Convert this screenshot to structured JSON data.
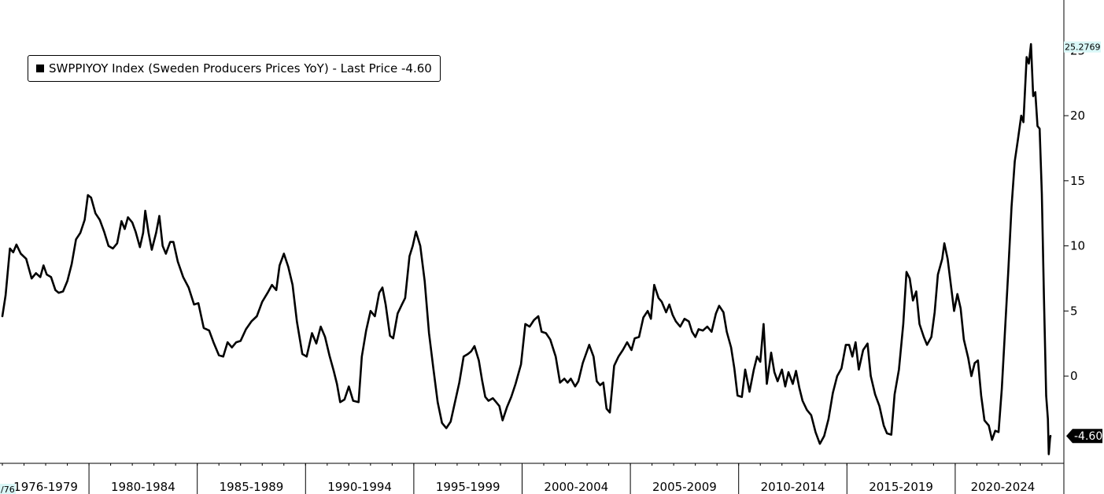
{
  "legend": {
    "text": "SWPPIYOY Index (Sweden Producers Prices YoY) - Last Price -4.60"
  },
  "axis_tags": {
    "max_value": "25.2769",
    "last_value": "-4.60",
    "start_tag": "/76"
  },
  "colors": {
    "line": "#000000",
    "axis": "#000000",
    "tag_bg": "#d9f7f7",
    "last_tag_bg": "#000000"
  },
  "chart_data": {
    "type": "line",
    "x_range": [
      1976.0,
      2024.4
    ],
    "ylim": [
      -6.7,
      28.4
    ],
    "y_ticks": [
      0,
      5,
      10,
      15,
      20,
      25
    ],
    "y_tick_labels": [
      "0",
      "5",
      "10",
      "15",
      "20",
      "25"
    ],
    "x_period_labels": [
      "1976-1979",
      "1980-1984",
      "1985-1989",
      "1990-1994",
      "1995-1999",
      "2000-2004",
      "2005-2009",
      "2010-2014",
      "2015-2019",
      "2020-2024"
    ],
    "x_period_bounds": [
      [
        1976.0,
        1980.0
      ],
      [
        1980.0,
        1985.0
      ],
      [
        1985.0,
        1990.0
      ],
      [
        1990.0,
        1995.0
      ],
      [
        1995.0,
        2000.0
      ],
      [
        2000.0,
        2005.0
      ],
      [
        2005.0,
        2010.0
      ],
      [
        2010.0,
        2015.0
      ],
      [
        2015.0,
        2020.0
      ],
      [
        2020.0,
        2024.4
      ]
    ],
    "grid": false,
    "legend_position": "top-left",
    "series": [
      {
        "values": [
          [
            1976.0,
            4.6
          ],
          [
            1976.15,
            6.2
          ],
          [
            1976.35,
            9.8
          ],
          [
            1976.5,
            9.5
          ],
          [
            1976.65,
            10.1
          ],
          [
            1976.85,
            9.4
          ],
          [
            1977.1,
            9.0
          ],
          [
            1977.35,
            7.5
          ],
          [
            1977.55,
            7.9
          ],
          [
            1977.75,
            7.6
          ],
          [
            1977.9,
            8.5
          ],
          [
            1978.05,
            7.8
          ],
          [
            1978.25,
            7.6
          ],
          [
            1978.45,
            6.6
          ],
          [
            1978.6,
            6.4
          ],
          [
            1978.8,
            6.5
          ],
          [
            1979.0,
            7.3
          ],
          [
            1979.2,
            8.6
          ],
          [
            1979.4,
            10.5
          ],
          [
            1979.6,
            11.0
          ],
          [
            1979.8,
            12.0
          ],
          [
            1979.95,
            13.9
          ],
          [
            1980.1,
            13.7
          ],
          [
            1980.3,
            12.5
          ],
          [
            1980.5,
            12.0
          ],
          [
            1980.7,
            11.1
          ],
          [
            1980.9,
            10.0
          ],
          [
            1981.1,
            9.8
          ],
          [
            1981.3,
            10.2
          ],
          [
            1981.5,
            11.9
          ],
          [
            1981.65,
            11.3
          ],
          [
            1981.8,
            12.2
          ],
          [
            1982.0,
            11.8
          ],
          [
            1982.15,
            11.1
          ],
          [
            1982.35,
            9.9
          ],
          [
            1982.5,
            11.0
          ],
          [
            1982.6,
            12.7
          ],
          [
            1982.75,
            11.0
          ],
          [
            1982.9,
            9.7
          ],
          [
            1983.1,
            11.0
          ],
          [
            1983.25,
            12.3
          ],
          [
            1983.4,
            10.0
          ],
          [
            1983.55,
            9.4
          ],
          [
            1983.75,
            10.3
          ],
          [
            1983.9,
            10.3
          ],
          [
            1984.1,
            8.8
          ],
          [
            1984.35,
            7.6
          ],
          [
            1984.6,
            6.8
          ],
          [
            1984.85,
            5.5
          ],
          [
            1985.05,
            5.6
          ],
          [
            1985.3,
            3.7
          ],
          [
            1985.55,
            3.5
          ],
          [
            1985.75,
            2.6
          ],
          [
            1986.0,
            1.6
          ],
          [
            1986.2,
            1.5
          ],
          [
            1986.4,
            2.6
          ],
          [
            1986.6,
            2.2
          ],
          [
            1986.8,
            2.6
          ],
          [
            1987.0,
            2.7
          ],
          [
            1987.25,
            3.6
          ],
          [
            1987.5,
            4.2
          ],
          [
            1987.75,
            4.6
          ],
          [
            1988.0,
            5.7
          ],
          [
            1988.25,
            6.4
          ],
          [
            1988.45,
            7.0
          ],
          [
            1988.65,
            6.6
          ],
          [
            1988.8,
            8.5
          ],
          [
            1989.0,
            9.4
          ],
          [
            1989.2,
            8.4
          ],
          [
            1989.4,
            7.0
          ],
          [
            1989.6,
            4.2
          ],
          [
            1989.85,
            1.7
          ],
          [
            1990.05,
            1.5
          ],
          [
            1990.3,
            3.3
          ],
          [
            1990.5,
            2.5
          ],
          [
            1990.7,
            3.8
          ],
          [
            1990.9,
            3.0
          ],
          [
            1991.1,
            1.6
          ],
          [
            1991.3,
            0.4
          ],
          [
            1991.45,
            -0.6
          ],
          [
            1991.6,
            -2.0
          ],
          [
            1991.8,
            -1.8
          ],
          [
            1992.0,
            -0.8
          ],
          [
            1992.2,
            -1.9
          ],
          [
            1992.45,
            -2.0
          ],
          [
            1992.6,
            1.5
          ],
          [
            1992.8,
            3.5
          ],
          [
            1993.0,
            5.0
          ],
          [
            1993.2,
            4.6
          ],
          [
            1993.4,
            6.4
          ],
          [
            1993.55,
            6.8
          ],
          [
            1993.7,
            5.5
          ],
          [
            1993.9,
            3.1
          ],
          [
            1994.05,
            2.9
          ],
          [
            1994.25,
            4.8
          ],
          [
            1994.45,
            5.5
          ],
          [
            1994.6,
            6.0
          ],
          [
            1994.8,
            9.2
          ],
          [
            1994.95,
            10.0
          ],
          [
            1995.1,
            11.1
          ],
          [
            1995.3,
            10.0
          ],
          [
            1995.5,
            7.3
          ],
          [
            1995.7,
            3.3
          ],
          [
            1995.9,
            0.6
          ],
          [
            1996.1,
            -2.0
          ],
          [
            1996.3,
            -3.6
          ],
          [
            1996.5,
            -4.0
          ],
          [
            1996.7,
            -3.5
          ],
          [
            1996.9,
            -2.0
          ],
          [
            1997.1,
            -0.5
          ],
          [
            1997.3,
            1.5
          ],
          [
            1997.5,
            1.7
          ],
          [
            1997.65,
            1.9
          ],
          [
            1997.8,
            2.3
          ],
          [
            1998.0,
            1.2
          ],
          [
            1998.15,
            -0.3
          ],
          [
            1998.3,
            -1.6
          ],
          [
            1998.45,
            -1.9
          ],
          [
            1998.65,
            -1.7
          ],
          [
            1998.8,
            -2.0
          ],
          [
            1998.95,
            -2.3
          ],
          [
            1999.1,
            -3.4
          ],
          [
            1999.3,
            -2.4
          ],
          [
            1999.5,
            -1.6
          ],
          [
            1999.7,
            -0.6
          ],
          [
            1999.95,
            0.9
          ],
          [
            2000.15,
            4.0
          ],
          [
            2000.35,
            3.8
          ],
          [
            2000.55,
            4.3
          ],
          [
            2000.75,
            4.6
          ],
          [
            2000.9,
            3.4
          ],
          [
            2001.1,
            3.3
          ],
          [
            2001.3,
            2.8
          ],
          [
            2001.55,
            1.5
          ],
          [
            2001.75,
            -0.5
          ],
          [
            2001.95,
            -0.2
          ],
          [
            2002.1,
            -0.5
          ],
          [
            2002.25,
            -0.2
          ],
          [
            2002.45,
            -0.8
          ],
          [
            2002.6,
            -0.4
          ],
          [
            2002.8,
            1.0
          ],
          [
            2002.95,
            1.7
          ],
          [
            2003.1,
            2.4
          ],
          [
            2003.3,
            1.5
          ],
          [
            2003.45,
            -0.4
          ],
          [
            2003.6,
            -0.7
          ],
          [
            2003.75,
            -0.5
          ],
          [
            2003.9,
            -2.5
          ],
          [
            2004.05,
            -2.8
          ],
          [
            2004.25,
            0.8
          ],
          [
            2004.45,
            1.5
          ],
          [
            2004.65,
            2.0
          ],
          [
            2004.85,
            2.6
          ],
          [
            2005.05,
            2.0
          ],
          [
            2005.2,
            2.9
          ],
          [
            2005.4,
            3.0
          ],
          [
            2005.6,
            4.5
          ],
          [
            2005.8,
            5.0
          ],
          [
            2005.95,
            4.4
          ],
          [
            2006.1,
            7.0
          ],
          [
            2006.3,
            6.0
          ],
          [
            2006.45,
            5.7
          ],
          [
            2006.65,
            4.9
          ],
          [
            2006.8,
            5.5
          ],
          [
            2006.95,
            4.7
          ],
          [
            2007.1,
            4.2
          ],
          [
            2007.3,
            3.8
          ],
          [
            2007.5,
            4.4
          ],
          [
            2007.7,
            4.2
          ],
          [
            2007.85,
            3.4
          ],
          [
            2008.0,
            3.0
          ],
          [
            2008.15,
            3.6
          ],
          [
            2008.35,
            3.5
          ],
          [
            2008.55,
            3.8
          ],
          [
            2008.75,
            3.4
          ],
          [
            2008.95,
            4.8
          ],
          [
            2009.1,
            5.4
          ],
          [
            2009.3,
            4.9
          ],
          [
            2009.45,
            3.4
          ],
          [
            2009.65,
            2.2
          ],
          [
            2009.8,
            0.6
          ],
          [
            2009.95,
            -1.5
          ],
          [
            2010.15,
            -1.6
          ],
          [
            2010.3,
            0.5
          ],
          [
            2010.5,
            -1.2
          ],
          [
            2010.7,
            0.5
          ],
          [
            2010.85,
            1.5
          ],
          [
            2011.0,
            1.1
          ],
          [
            2011.15,
            4.0
          ],
          [
            2011.3,
            -0.6
          ],
          [
            2011.5,
            1.8
          ],
          [
            2011.65,
            0.3
          ],
          [
            2011.8,
            -0.4
          ],
          [
            2012.0,
            0.5
          ],
          [
            2012.15,
            -0.8
          ],
          [
            2012.3,
            0.3
          ],
          [
            2012.5,
            -0.6
          ],
          [
            2012.65,
            0.4
          ],
          [
            2012.8,
            -0.9
          ],
          [
            2012.95,
            -1.9
          ],
          [
            2013.15,
            -2.6
          ],
          [
            2013.35,
            -3.0
          ],
          [
            2013.55,
            -4.3
          ],
          [
            2013.75,
            -5.2
          ],
          [
            2013.95,
            -4.6
          ],
          [
            2014.15,
            -3.3
          ],
          [
            2014.35,
            -1.3
          ],
          [
            2014.55,
            0.0
          ],
          [
            2014.75,
            0.6
          ],
          [
            2014.95,
            2.4
          ],
          [
            2015.1,
            2.4
          ],
          [
            2015.25,
            1.5
          ],
          [
            2015.4,
            2.6
          ],
          [
            2015.55,
            0.5
          ],
          [
            2015.75,
            2.0
          ],
          [
            2015.95,
            2.5
          ],
          [
            2016.1,
            0.0
          ],
          [
            2016.3,
            -1.4
          ],
          [
            2016.5,
            -2.3
          ],
          [
            2016.7,
            -3.8
          ],
          [
            2016.85,
            -4.4
          ],
          [
            2017.05,
            -4.5
          ],
          [
            2017.2,
            -1.4
          ],
          [
            2017.4,
            0.5
          ],
          [
            2017.6,
            4.0
          ],
          [
            2017.75,
            8.0
          ],
          [
            2017.9,
            7.5
          ],
          [
            2018.05,
            5.8
          ],
          [
            2018.2,
            6.5
          ],
          [
            2018.35,
            4.0
          ],
          [
            2018.55,
            3.0
          ],
          [
            2018.7,
            2.4
          ],
          [
            2018.9,
            3.0
          ],
          [
            2019.05,
            4.9
          ],
          [
            2019.2,
            7.8
          ],
          [
            2019.4,
            9.0
          ],
          [
            2019.5,
            10.2
          ],
          [
            2019.65,
            9.0
          ],
          [
            2019.8,
            7.0
          ],
          [
            2019.95,
            5.0
          ],
          [
            2020.1,
            6.3
          ],
          [
            2020.25,
            5.2
          ],
          [
            2020.4,
            2.8
          ],
          [
            2020.6,
            1.4
          ],
          [
            2020.75,
            0.0
          ],
          [
            2020.9,
            1.0
          ],
          [
            2021.05,
            1.2
          ],
          [
            2021.2,
            -1.5
          ],
          [
            2021.35,
            -3.4
          ],
          [
            2021.55,
            -3.8
          ],
          [
            2021.7,
            -4.9
          ],
          [
            2021.85,
            -4.2
          ],
          [
            2022.0,
            -4.3
          ],
          [
            2022.15,
            -1.0
          ],
          [
            2022.3,
            3.5
          ],
          [
            2022.45,
            8.0
          ],
          [
            2022.6,
            13.0
          ],
          [
            2022.75,
            16.5
          ],
          [
            2022.9,
            18.2
          ],
          [
            2023.05,
            20.0
          ],
          [
            2023.15,
            19.5
          ],
          [
            2023.3,
            24.5
          ],
          [
            2023.4,
            24.0
          ],
          [
            2023.5,
            25.5
          ],
          [
            2023.6,
            21.5
          ],
          [
            2023.7,
            21.8
          ],
          [
            2023.8,
            19.2
          ],
          [
            2023.9,
            19.0
          ],
          [
            2024.0,
            14.0
          ],
          [
            2024.1,
            6.0
          ],
          [
            2024.2,
            -1.5
          ],
          [
            2024.28,
            -3.3
          ],
          [
            2024.32,
            -6.0
          ],
          [
            2024.38,
            -4.8
          ],
          [
            2024.4,
            -4.6
          ]
        ]
      }
    ]
  }
}
